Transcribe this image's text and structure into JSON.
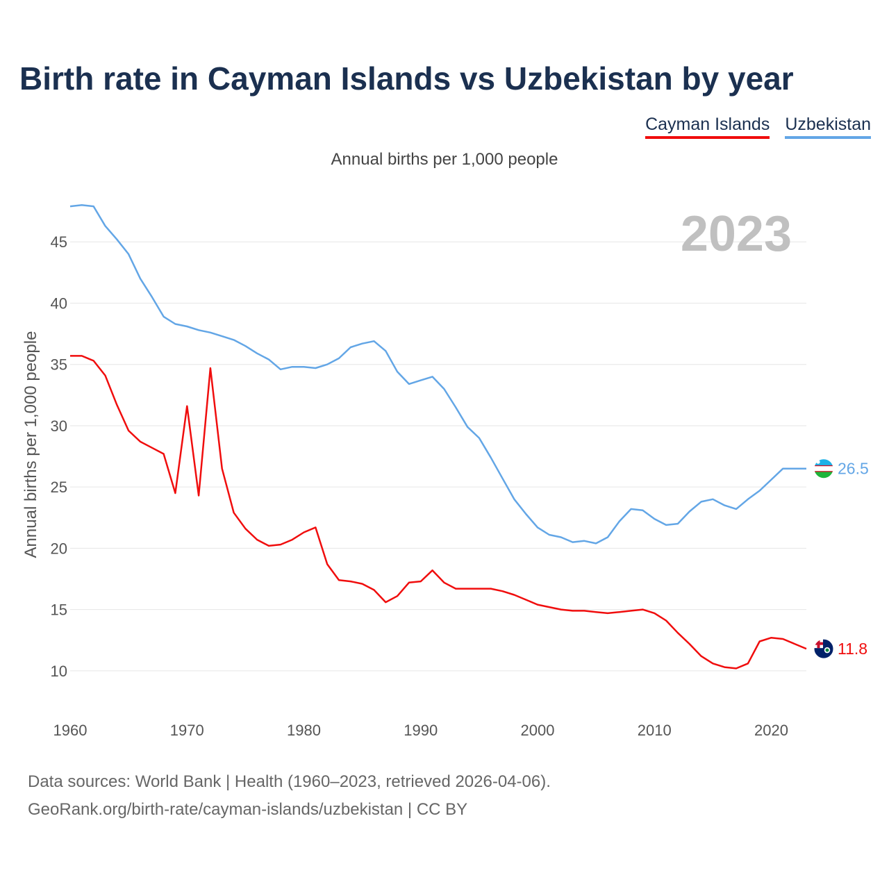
{
  "colors": {
    "cayman": "#f00d0d",
    "uzbekistan": "#63a6e6",
    "grid": "#e6e6e6",
    "year_overlay": "#c0c0c0",
    "title": "#1b3050"
  },
  "chart_data": {
    "type": "line",
    "title": "Birth rate in Cayman Islands vs Uzbekistan by year",
    "subtitle": "Annual births per 1,000 people",
    "ylabel": "Annual births per 1,000 people",
    "xlabel": "",
    "year_overlay": "2023",
    "xlim": [
      1960,
      2023
    ],
    "ylim": [
      7.5,
      50
    ],
    "x_ticks": [
      1960,
      1970,
      1980,
      1990,
      2000,
      2010,
      2020
    ],
    "y_ticks": [
      10,
      15,
      20,
      25,
      30,
      35,
      40,
      45
    ],
    "grid": true,
    "legend_position": "top-right",
    "x": [
      1960,
      1961,
      1962,
      1963,
      1964,
      1965,
      1966,
      1967,
      1968,
      1969,
      1970,
      1971,
      1972,
      1973,
      1974,
      1975,
      1976,
      1977,
      1978,
      1979,
      1980,
      1981,
      1982,
      1983,
      1984,
      1985,
      1986,
      1987,
      1988,
      1989,
      1990,
      1991,
      1992,
      1993,
      1994,
      1995,
      1996,
      1997,
      1998,
      1999,
      2000,
      2001,
      2002,
      2003,
      2004,
      2005,
      2006,
      2007,
      2008,
      2009,
      2010,
      2011,
      2012,
      2013,
      2014,
      2015,
      2016,
      2017,
      2018,
      2019,
      2020,
      2021,
      2022,
      2023
    ],
    "series": [
      {
        "name": "Cayman Islands",
        "color": "#f00d0d",
        "end_label": "11.8",
        "flag_icon": "cayman-islands-flag-icon",
        "values": [
          35.7,
          35.7,
          35.3,
          34.1,
          31.7,
          29.6,
          28.7,
          28.2,
          27.7,
          24.5,
          31.6,
          24.3,
          34.7,
          26.5,
          22.9,
          21.6,
          20.7,
          20.2,
          20.3,
          20.7,
          21.3,
          21.7,
          18.7,
          17.4,
          17.3,
          17.1,
          16.6,
          15.6,
          16.1,
          17.2,
          17.3,
          18.2,
          17.2,
          16.7,
          16.7,
          16.7,
          16.7,
          16.5,
          16.2,
          15.8,
          15.4,
          15.2,
          15.0,
          14.9,
          14.9,
          14.8,
          14.7,
          14.8,
          14.9,
          15.0,
          14.7,
          14.1,
          13.1,
          12.2,
          11.2,
          10.6,
          10.3,
          10.2,
          10.6,
          12.4,
          12.7,
          12.6,
          12.2,
          11.8
        ]
      },
      {
        "name": "Uzbekistan",
        "color": "#63a6e6",
        "end_label": "26.5",
        "flag_icon": "uzbekistan-flag-icon",
        "values": [
          47.9,
          48.0,
          47.9,
          46.3,
          45.2,
          44.0,
          42.0,
          40.5,
          38.9,
          38.3,
          38.1,
          37.8,
          37.6,
          37.3,
          37.0,
          36.5,
          35.9,
          35.4,
          34.6,
          34.8,
          34.8,
          34.7,
          35.0,
          35.5,
          36.4,
          36.7,
          36.9,
          36.1,
          34.4,
          33.4,
          33.7,
          34.0,
          33.0,
          31.5,
          29.9,
          29.0,
          27.4,
          25.7,
          24.0,
          22.8,
          21.7,
          21.1,
          20.9,
          20.5,
          20.6,
          20.4,
          20.9,
          22.2,
          23.2,
          23.1,
          22.4,
          21.9,
          22.0,
          23.0,
          23.8,
          24.0,
          23.5,
          23.2,
          24.0,
          24.7,
          25.6,
          26.5,
          26.5,
          26.5
        ]
      }
    ]
  },
  "source": {
    "line1": "Data sources: World Bank | Health (1960–2023, retrieved 2026-04-06).",
    "line2": "GeoRank.org/birth-rate/cayman-islands/uzbekistan | CC BY"
  }
}
